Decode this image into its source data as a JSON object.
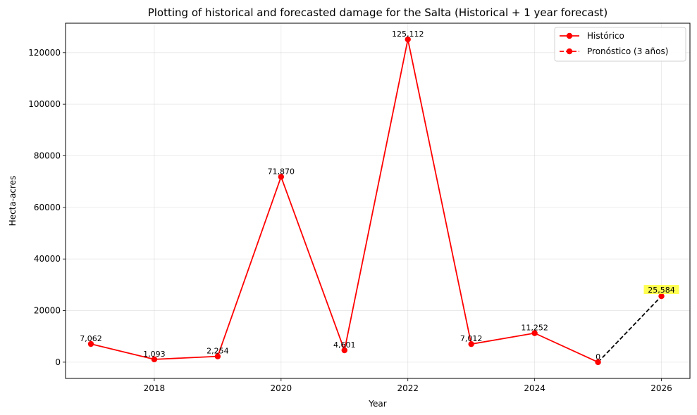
{
  "chart_data": {
    "type": "line",
    "title": "Plotting of historical and forecasted damage for the Salta (Historical + 1 year forecast)",
    "xlabel": "Year",
    "ylabel": "Hecta-acres",
    "xlim": [
      2016.6,
      2026.45
    ],
    "ylim": [
      -6300,
      131400
    ],
    "x_ticks": [
      2018,
      2020,
      2022,
      2024,
      2026
    ],
    "y_ticks": [
      0,
      20000,
      40000,
      60000,
      80000,
      100000,
      120000
    ],
    "grid": true,
    "legend_position": "top-right",
    "series": [
      {
        "name": "Histórico",
        "style": "solid",
        "color": "#ff0000",
        "x": [
          2017,
          2018,
          2019,
          2020,
          2021,
          2022,
          2023,
          2024,
          2025
        ],
        "y": [
          7062,
          1093,
          2254,
          71870,
          4601,
          125112,
          7012,
          11252,
          0
        ],
        "labels": [
          "7,062",
          "1,093",
          "2,254",
          "71,870",
          "4,601",
          "125,112",
          "7,012",
          "11,252",
          "0"
        ]
      },
      {
        "name": "Pronóstico (3 años)",
        "style": "dashed",
        "color": "#000000",
        "marker_color": "#ff0000",
        "x": [
          2025,
          2026
        ],
        "y": [
          0,
          25584
        ],
        "labels": [
          "25,584"
        ],
        "highlight_color": "#ffff33"
      }
    ]
  }
}
